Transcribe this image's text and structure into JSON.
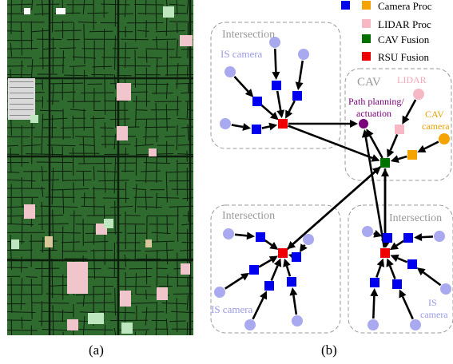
{
  "captions": {
    "a": "(a)",
    "b": "(b)"
  },
  "legend": [
    {
      "label": "Camera Proc",
      "colors": [
        "#0000ee",
        "#f5a300"
      ]
    },
    {
      "label": "LIDAR Proc",
      "colors": [
        "#f6b8c4"
      ]
    },
    {
      "label": "CAV Fusion",
      "colors": [
        "#007000"
      ]
    },
    {
      "label": "RSU Fusion",
      "colors": [
        "#ee0000"
      ]
    }
  ],
  "groups": {
    "top_left": {
      "title": "Intersection",
      "sublabel": "IS camera"
    },
    "cav": {
      "title": "CAV",
      "lidar": "LIDAR",
      "path": [
        "Path planning/",
        "actuation"
      ],
      "camera": [
        "CAV",
        "camera"
      ]
    },
    "bottom_left": {
      "title": "Intersection",
      "sublabel": "IS camera"
    },
    "bottom_right": {
      "title": "Intersection",
      "sublabel": [
        "IS",
        "camera"
      ]
    }
  },
  "colors": {
    "camera_proc": "#0000ee",
    "cav_camera": "#f5a300",
    "lidar": "#f6b8c4",
    "cav_fusion": "#007000",
    "rsu_fusion": "#ee0000",
    "sensor": "#a9a9ef",
    "path": "#7a007a",
    "is_label": "#9a9ae8",
    "cav_camera_label": "#e8a000",
    "lidar_label": "#f2a9b8",
    "path_label": "#7a007a",
    "group_title": "#999999",
    "map_bg": "#2e6b2e",
    "map_road": "#0f1f0f"
  }
}
